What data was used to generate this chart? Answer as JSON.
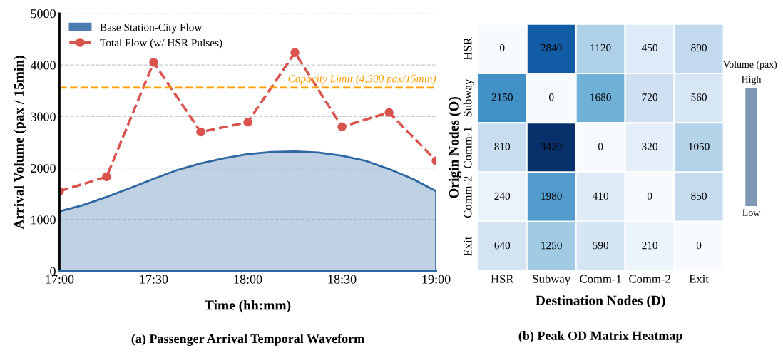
{
  "chart_data": [
    {
      "type": "line",
      "title": "(a) Passenger Arrival Temporal Waveform",
      "xlabel": "Time (hh:mm)",
      "ylabel": "Arrival Volume (pax / 15min)",
      "xlim": [
        17,
        19
      ],
      "xticks": [
        {
          "value": 17,
          "label": "17:00"
        },
        {
          "value": 17.5,
          "label": "17:30"
        },
        {
          "value": 18,
          "label": "18:00"
        },
        {
          "value": 18.5,
          "label": "18:30"
        },
        {
          "value": 19,
          "label": "19:00"
        }
      ],
      "ylim": [
        0,
        5000
      ],
      "yticks": [
        0,
        1000,
        2000,
        3000,
        4000,
        5000
      ],
      "grid": "y",
      "legend": "top left",
      "series": [
        {
          "name": "Base Station-City Flow",
          "type": "area",
          "color": "#2f67a3",
          "x": [
            17,
            17.125,
            17.25,
            17.375,
            17.5,
            17.625,
            17.75,
            17.875,
            18,
            18.125,
            18.25,
            18.375,
            18.5,
            18.625,
            18.75,
            18.875,
            19
          ],
          "values": [
            1160,
            1280,
            1440,
            1610,
            1790,
            1960,
            2090,
            2190,
            2270,
            2310,
            2320,
            2300,
            2240,
            2140,
            1980,
            1790,
            1550
          ]
        },
        {
          "name": "Total Flow (w/ HSR Pulses)",
          "type": "line",
          "color": "#d9534f",
          "marker": "circle",
          "line_style": "dashed",
          "x": [
            17,
            17.25,
            17.5,
            17.75,
            18,
            18.25,
            18.5,
            18.75,
            19
          ],
          "values": [
            1550,
            1830,
            4050,
            2700,
            2890,
            4240,
            2800,
            3080,
            2140
          ]
        }
      ],
      "ref_lines": [
        {
          "axis": "y",
          "value": 3560,
          "label": "Capacity Limit (4,500 pax/15min)",
          "color": "#ff9f00",
          "line_style": "dashed"
        }
      ]
    },
    {
      "type": "heatmap",
      "title": "(b) Peak OD Matrix Heatmap",
      "xlabel": "Destination Nodes (D)",
      "ylabel": "Origin Nodes (O)",
      "clabel": "Volume (pax)",
      "categories": [
        "HSR",
        "Subway",
        "Comm-1",
        "Comm-2",
        "Exit"
      ],
      "y_categories": [
        "HSR",
        "Subway",
        "Comm-1",
        "Comm-2",
        "Exit"
      ],
      "data_labels": true,
      "annotations": [
        "High",
        "Low"
      ],
      "cells": [
        [
          0,
          2840,
          1120,
          450,
          890
        ],
        [
          2150,
          0,
          1680,
          720,
          560
        ],
        [
          810,
          3420,
          0,
          320,
          1050
        ],
        [
          240,
          1980,
          410,
          0,
          850
        ],
        [
          640,
          1250,
          590,
          210,
          0
        ]
      ]
    }
  ]
}
